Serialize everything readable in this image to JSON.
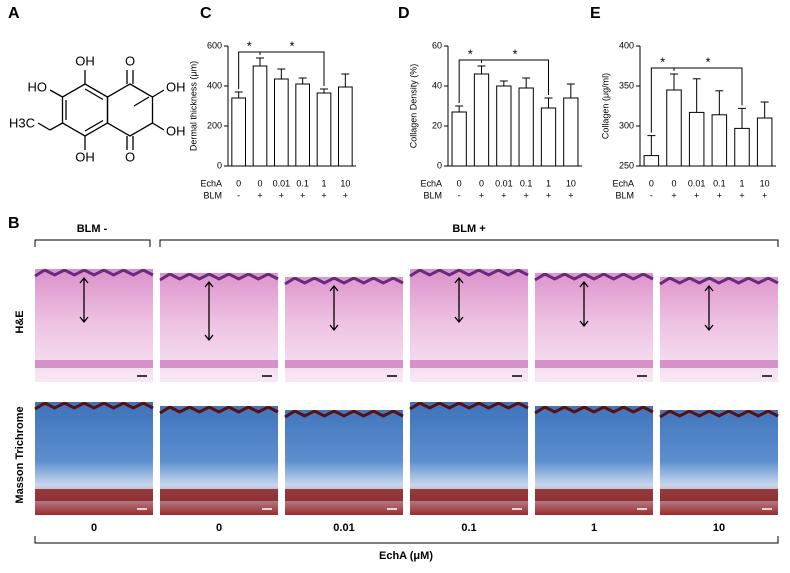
{
  "panels": {
    "a": "A",
    "b": "B",
    "c": "C",
    "d": "D",
    "e": "E"
  },
  "structure": {
    "labels": [
      "OH",
      "HO",
      "H3C",
      "OH",
      "O",
      "OH",
      "OH",
      "O"
    ]
  },
  "chart_data": [
    {
      "type": "bar",
      "ylabel": "Dermal thickness (μm)",
      "category_row_labels": [
        "EchA",
        "BLM"
      ],
      "categories": [
        "0",
        "0",
        "0.01",
        "0.1",
        "1",
        "10"
      ],
      "categories2": [
        "-",
        "+",
        "+",
        "+",
        "+",
        "+"
      ],
      "values": [
        340,
        500,
        435,
        410,
        365,
        395
      ],
      "errors": [
        30,
        40,
        50,
        30,
        20,
        65
      ],
      "ylim": [
        0,
        600
      ],
      "yticks": [
        0,
        200,
        400,
        600
      ],
      "color": "#ffffff",
      "annotations": [
        "*",
        "*"
      ]
    },
    {
      "type": "bar",
      "ylabel": "Collagen Density (%)",
      "category_row_labels": [
        "EchA",
        "BLM"
      ],
      "categories": [
        "0",
        "0",
        "0.01",
        "0.1",
        "1",
        "10"
      ],
      "categories2": [
        "-",
        "+",
        "+",
        "+",
        "+",
        "+"
      ],
      "values": [
        27,
        46,
        40,
        39,
        29,
        34
      ],
      "errors": [
        3,
        4,
        2.5,
        5,
        5,
        7
      ],
      "ylim": [
        0,
        60
      ],
      "yticks": [
        0,
        20,
        40,
        60
      ],
      "color": "#ffffff",
      "annotations": [
        "*",
        "*"
      ]
    },
    {
      "type": "bar",
      "ylabel": "Collagen (μg/ml)",
      "category_row_labels": [
        "EchA",
        "BLM"
      ],
      "categories": [
        "0",
        "0",
        "0.01",
        "0.1",
        "1",
        "10"
      ],
      "categories2": [
        "-",
        "+",
        "+",
        "+",
        "+",
        "+"
      ],
      "values": [
        263,
        345,
        317,
        314,
        297,
        310
      ],
      "errors": [
        25,
        20,
        42,
        30,
        25,
        20
      ],
      "ylim": [
        250,
        400
      ],
      "yticks": [
        250,
        300,
        350,
        400
      ],
      "color": "#ffffff",
      "annotations": [
        "*",
        "*"
      ]
    }
  ],
  "histology": {
    "groups": [
      "BLM -",
      "BLM +"
    ],
    "rows": [
      "H&E",
      "Masson Trichrome"
    ],
    "columns": [
      "0",
      "0",
      "0.01",
      "0.1",
      "1",
      "10"
    ],
    "axis_label": "EchA (μM)"
  }
}
